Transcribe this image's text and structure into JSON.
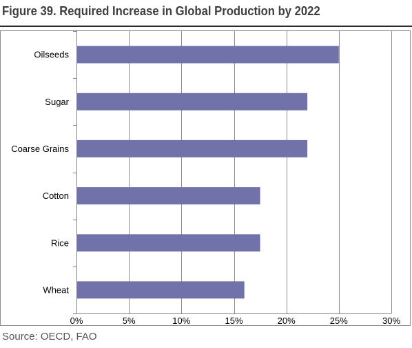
{
  "figure": {
    "title": "Figure 39. Required Increase in Global Production by 2022",
    "source": "Source: OECD, FAO"
  },
  "chart_data": {
    "type": "bar",
    "orientation": "horizontal",
    "title": "Figure 39. Required Increase in Global Production by 2022",
    "xlabel": "",
    "ylabel": "",
    "categories": [
      "Oilseeds",
      "Sugar",
      "Coarse Grains",
      "Cotton",
      "Rice",
      "Wheat"
    ],
    "values": [
      25,
      22,
      22,
      17.5,
      17.5,
      16
    ],
    "value_unit": "%",
    "xlim": [
      0,
      30
    ],
    "x_ticks": [
      0,
      5,
      10,
      15,
      20,
      25,
      30
    ],
    "x_tick_labels": [
      "0%",
      "5%",
      "10%",
      "15%",
      "20%",
      "25%",
      "30%"
    ],
    "grid": "vertical",
    "legend": "none",
    "bar_color": "#7272ab",
    "grid_color": "#8c8c8c"
  }
}
